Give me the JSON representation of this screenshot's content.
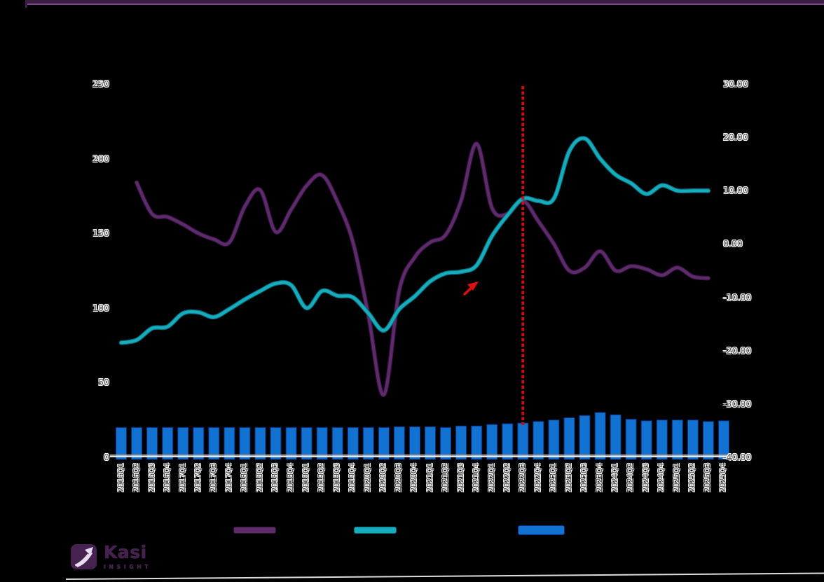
{
  "page": {
    "background": "#000000"
  },
  "header": {
    "bar_color": "#3A1F42",
    "accent_color": "#7B4587"
  },
  "logo": {
    "brand": "Kasi",
    "sub": "INSIGHT",
    "color": "#45224F"
  },
  "legend": [
    {
      "name": "purple-line-series",
      "type": "line",
      "color": "#5E2B6B",
      "border": "#2C1236"
    },
    {
      "name": "teal-line-series",
      "type": "line",
      "color": "#16ADBE",
      "border": "#0B6C78"
    },
    {
      "name": "blue-bar-series",
      "type": "bar",
      "color": "#1272D2",
      "border": "#0A2F80"
    }
  ],
  "chart_data": {
    "type": "combo",
    "categories": [
      "2016Q1",
      "2016Q2",
      "2016Q3",
      "2016Q4",
      "2017Q1",
      "2017Q2",
      "2017Q3",
      "2017Q4",
      "2018Q1",
      "2018Q2",
      "2018Q3",
      "2018Q4",
      "2019Q1",
      "2019Q2",
      "2019Q3",
      "2019Q4",
      "2020Q1",
      "2020Q2",
      "2020Q3",
      "2020Q4",
      "2021Q1",
      "2021Q2",
      "2021Q3",
      "2021Q4",
      "2022Q1",
      "2022Q2",
      "2022Q3",
      "2022Q4",
      "2023Q1",
      "2023Q2",
      "2023Q3",
      "2023Q4",
      "2024Q1",
      "2024Q2",
      "2024Q3",
      "2024Q4",
      "2025Q1",
      "2025Q2",
      "2025Q3",
      "2025Q4"
    ],
    "series": [
      {
        "name": "purple-line",
        "type": "line",
        "axis": "left",
        "color": "#5E2B6B",
        "edge": "#33123F",
        "values": [
          null,
          184,
          163,
          161,
          156,
          150,
          146,
          144,
          168,
          179,
          151,
          166,
          182,
          189,
          171,
          144,
          95,
          42,
          112,
          134,
          144,
          149,
          172,
          210,
          167,
          163,
          172,
          158,
          143,
          125,
          127,
          138,
          125,
          128,
          126,
          122,
          127,
          121,
          120,
          null
        ]
      },
      {
        "name": "teal-line",
        "type": "line",
        "axis": "right",
        "color": "#16ADBE",
        "edge": "#0B6C78",
        "values": [
          -18.5,
          -18,
          -15.8,
          -15.5,
          -13,
          -12.8,
          -13.7,
          -12.2,
          -10.4,
          -8.8,
          -7.4,
          -7.7,
          -12,
          -8.8,
          -9.7,
          -10,
          -13,
          -16.2,
          -12.2,
          -9.8,
          -7,
          -5.5,
          -5.2,
          -4,
          1.5,
          5.4,
          8.5,
          8.1,
          8.5,
          17.4,
          19.8,
          16,
          13,
          11.4,
          9.4,
          11,
          10,
          10,
          10,
          null
        ]
      },
      {
        "name": "blue-bars",
        "type": "bar",
        "axis": "left",
        "color": "#1272D2",
        "edge": "#0A2F80",
        "values": [
          20,
          20,
          20,
          20,
          20,
          20,
          20,
          20,
          20,
          20,
          20,
          20,
          20,
          20,
          20,
          20,
          20,
          20,
          20.5,
          20.5,
          20.5,
          20,
          21,
          21,
          22,
          22.5,
          23,
          24,
          25,
          26.5,
          28,
          30,
          28.5,
          25.5,
          24.5,
          25,
          25,
          25,
          24,
          24.5
        ]
      }
    ],
    "left_axis": {
      "min": 0,
      "max": 250,
      "step": 50,
      "ticks": [
        "0",
        "50",
        "100",
        "150",
        "200",
        "250"
      ]
    },
    "right_axis": {
      "min": -40,
      "max": 30,
      "step": 10,
      "ticks": [
        "-40.00",
        "-30.00",
        "-20.00",
        "-10.00",
        "0.00",
        "10.00",
        "20.00",
        "30.00"
      ]
    },
    "grid": false,
    "legend_position": "bottom",
    "annotations": {
      "vline": {
        "category": "2022Q3",
        "color": "#CE0E0E",
        "style": "dashed"
      },
      "arrow": {
        "x": 672,
        "y": 412,
        "direction": "up-right",
        "color": "#E01010"
      }
    }
  }
}
